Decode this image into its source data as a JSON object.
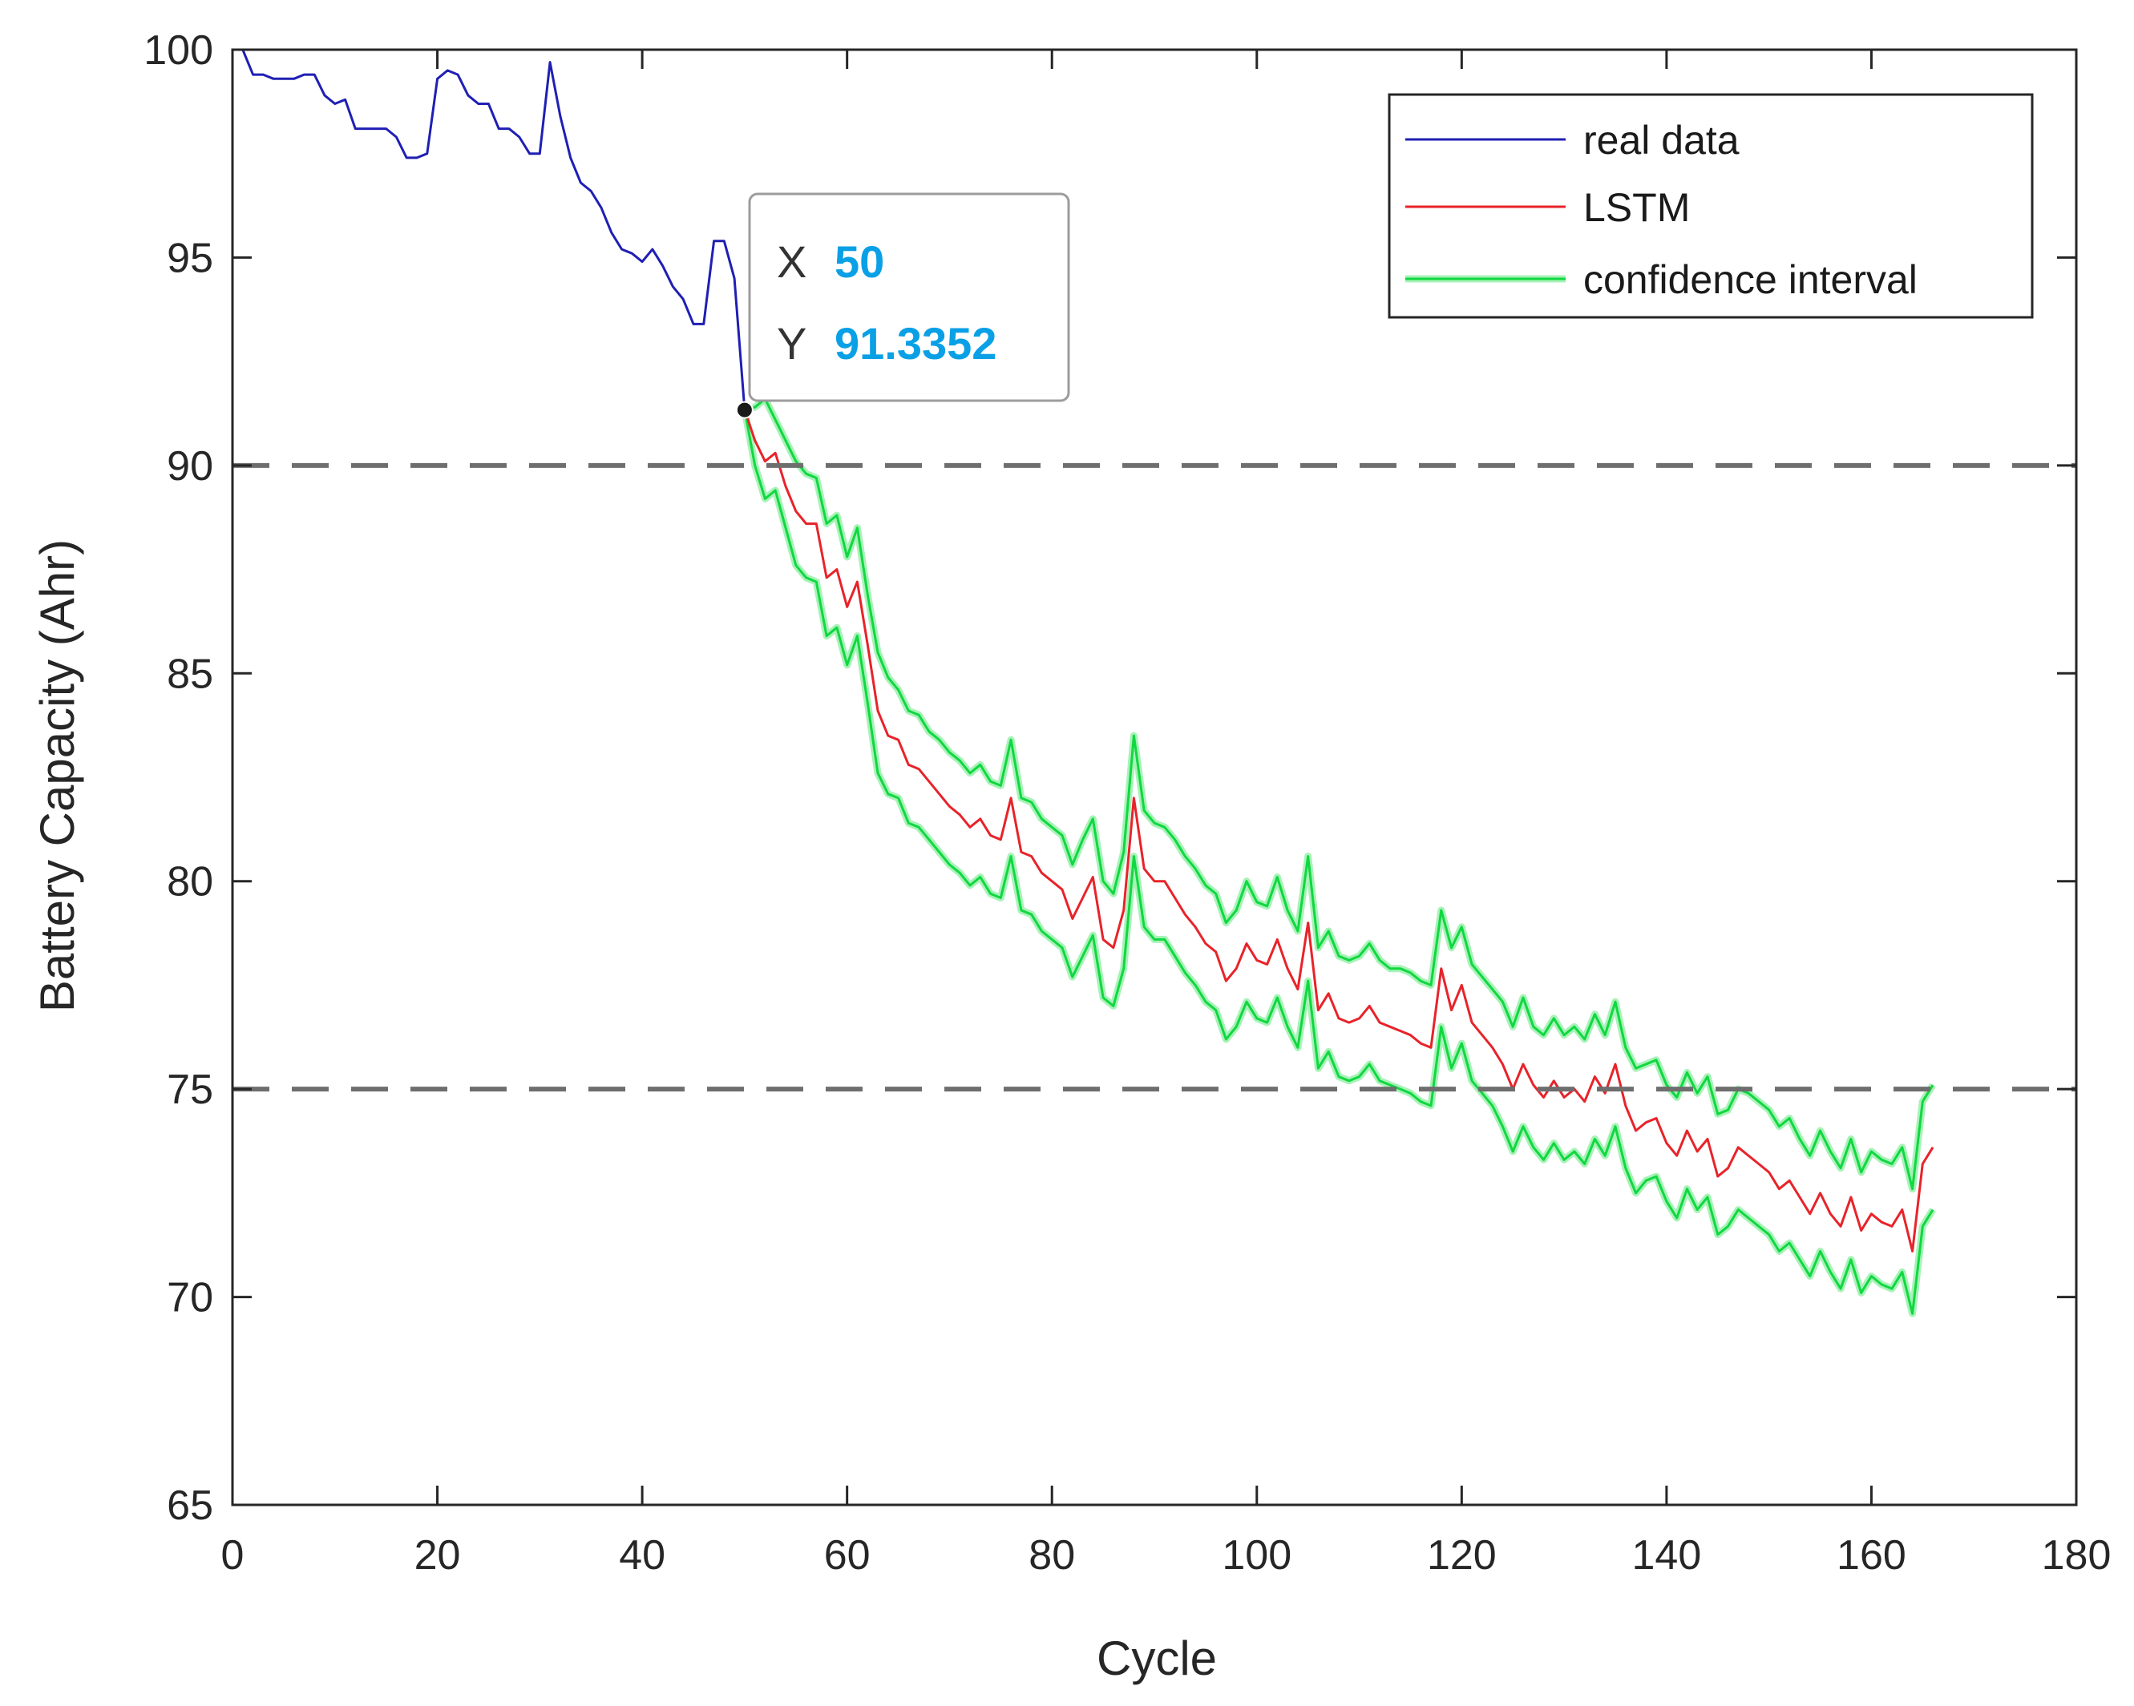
{
  "chart_data": {
    "type": "line",
    "title": "",
    "xlabel": "Cycle",
    "ylabel": "Battery Capacity (Ahr)",
    "xlim": [
      0,
      180
    ],
    "ylim": [
      65,
      100
    ],
    "xticks": [
      0,
      20,
      40,
      60,
      80,
      100,
      120,
      140,
      160,
      180
    ],
    "yticks": [
      65,
      70,
      75,
      80,
      85,
      90,
      95,
      100
    ],
    "xtick_labels": [
      "0",
      "20",
      "40",
      "60",
      "80",
      "100",
      "120",
      "140",
      "160",
      "180"
    ],
    "ytick_labels": [
      "65",
      "70",
      "75",
      "80",
      "85",
      "90",
      "95",
      "100"
    ],
    "threshold_lines": [
      90,
      75
    ],
    "legend_position": "top-right",
    "colors": {
      "real": "#1f1fb4",
      "lstm": "#e8232a",
      "ci": "#10d840",
      "ci_glow": "#a8f2b8",
      "threshold": "#6e6e6e",
      "axis": "#262626"
    },
    "series": [
      {
        "name": "real data",
        "color": "#1f1fb4",
        "x": [
          1,
          2,
          3,
          4,
          5,
          6,
          7,
          8,
          9,
          10,
          11,
          12,
          13,
          14,
          15,
          16,
          17,
          18,
          19,
          20,
          21,
          22,
          23,
          24,
          25,
          26,
          27,
          28,
          29,
          30,
          31,
          32,
          33,
          34,
          35,
          36,
          37,
          38,
          39,
          40,
          41,
          42,
          43,
          44,
          45,
          46,
          47,
          48,
          49,
          50
        ],
        "y": [
          100,
          99.4,
          99.4,
          99.3,
          99.3,
          99.3,
          99.4,
          99.4,
          98.9,
          98.7,
          98.8,
          98.1,
          98.1,
          98.1,
          98.1,
          97.9,
          97.4,
          97.4,
          97.5,
          99.3,
          99.5,
          99.4,
          98.9,
          98.7,
          98.7,
          98.1,
          98.1,
          97.9,
          97.5,
          97.5,
          99.7,
          98.4,
          97.4,
          96.8,
          96.6,
          96.2,
          95.6,
          95.2,
          95.1,
          94.9,
          95.2,
          94.8,
          94.3,
          94.0,
          93.4,
          93.4,
          95.4,
          95.4,
          94.5,
          91.3352
        ]
      },
      {
        "name": "LSTM",
        "color": "#e8232a",
        "x": [
          50,
          51,
          52,
          53,
          54,
          55,
          56,
          57,
          58,
          59,
          60,
          61,
          62,
          63,
          64,
          65,
          66,
          67,
          68,
          69,
          70,
          71,
          72,
          73,
          74,
          75,
          76,
          77,
          78,
          79,
          80,
          81,
          82,
          83,
          84,
          85,
          86,
          87,
          88,
          89,
          90,
          91,
          92,
          93,
          94,
          95,
          96,
          97,
          98,
          99,
          100,
          101,
          102,
          103,
          104,
          105,
          106,
          107,
          108,
          109,
          110,
          111,
          112,
          113,
          114,
          115,
          116,
          117,
          118,
          119,
          120,
          121,
          122,
          123,
          124,
          125,
          126,
          127,
          128,
          129,
          130,
          131,
          132,
          133,
          134,
          135,
          136,
          137,
          138,
          139,
          140,
          141,
          142,
          143,
          144,
          145,
          146,
          147,
          148,
          149,
          150,
          151,
          152,
          153,
          154,
          155,
          156,
          157,
          158,
          159,
          160,
          161,
          162,
          163,
          164,
          165,
          166
        ],
        "y": [
          91.34,
          90.6,
          90.1,
          90.3,
          89.5,
          88.9,
          88.6,
          88.6,
          87.3,
          87.5,
          86.6,
          87.2,
          85.7,
          84.1,
          83.5,
          83.4,
          82.8,
          82.7,
          82.4,
          82.1,
          81.8,
          81.6,
          81.3,
          81.5,
          81.1,
          81.0,
          82.0,
          80.7,
          80.6,
          80.2,
          80.0,
          79.8,
          79.1,
          79.6,
          80.1,
          78.6,
          78.4,
          79.3,
          82.0,
          80.3,
          80.0,
          80.0,
          79.6,
          79.2,
          78.9,
          78.5,
          78.3,
          77.6,
          77.9,
          78.5,
          78.1,
          78.0,
          78.6,
          77.9,
          77.4,
          79.0,
          76.9,
          77.3,
          76.7,
          76.6,
          76.7,
          77.0,
          76.6,
          76.5,
          76.4,
          76.3,
          76.1,
          76.0,
          77.9,
          76.9,
          77.5,
          76.6,
          76.3,
          76.0,
          75.6,
          75.0,
          75.6,
          75.1,
          74.8,
          75.2,
          74.8,
          75.0,
          74.7,
          75.3,
          74.9,
          75.6,
          74.6,
          74.0,
          74.2,
          74.3,
          73.7,
          73.4,
          74.0,
          73.5,
          73.8,
          72.9,
          73.1,
          73.6,
          73.4,
          73.2,
          73.0,
          72.6,
          72.8,
          72.4,
          72.0,
          72.5,
          72.0,
          71.7,
          72.4,
          71.6,
          72.0,
          71.8,
          71.7,
          72.1,
          71.1,
          73.2,
          73.6
        ]
      },
      {
        "name": "confidence interval",
        "color": "#10d840",
        "x": [
          50,
          51,
          52,
          53,
          54,
          55,
          56,
          57,
          58,
          59,
          60,
          61,
          62,
          63,
          64,
          65,
          66,
          67,
          68,
          69,
          70,
          71,
          72,
          73,
          74,
          75,
          76,
          77,
          78,
          79,
          80,
          81,
          82,
          83,
          84,
          85,
          86,
          87,
          88,
          89,
          90,
          91,
          92,
          93,
          94,
          95,
          96,
          97,
          98,
          99,
          100,
          101,
          102,
          103,
          104,
          105,
          106,
          107,
          108,
          109,
          110,
          111,
          112,
          113,
          114,
          115,
          116,
          117,
          118,
          119,
          120,
          121,
          122,
          123,
          124,
          125,
          126,
          127,
          128,
          129,
          130,
          131,
          132,
          133,
          134,
          135,
          136,
          137,
          138,
          139,
          140,
          141,
          142,
          143,
          144,
          145,
          146,
          147,
          148,
          149,
          150,
          151,
          152,
          153,
          154,
          155,
          156,
          157,
          158,
          159,
          160,
          161,
          162,
          163,
          164,
          165,
          166
        ],
        "upper": [
          91.34,
          91.4,
          91.6,
          91.1,
          90.6,
          90.1,
          89.8,
          89.7,
          88.6,
          88.8,
          87.8,
          88.5,
          86.9,
          85.5,
          84.9,
          84.6,
          84.1,
          84.0,
          83.6,
          83.4,
          83.1,
          82.9,
          82.6,
          82.8,
          82.4,
          82.3,
          83.4,
          82.0,
          81.9,
          81.5,
          81.3,
          81.1,
          80.4,
          81.0,
          81.5,
          80.0,
          79.7,
          80.7,
          83.5,
          81.7,
          81.4,
          81.3,
          81.0,
          80.6,
          80.3,
          79.9,
          79.7,
          79.0,
          79.3,
          80.0,
          79.5,
          79.4,
          80.1,
          79.3,
          78.8,
          80.6,
          78.4,
          78.8,
          78.2,
          78.1,
          78.2,
          78.5,
          78.1,
          77.9,
          77.9,
          77.8,
          77.6,
          77.5,
          79.3,
          78.4,
          78.9,
          78.0,
          77.7,
          77.4,
          77.1,
          76.5,
          77.2,
          76.5,
          76.3,
          76.7,
          76.3,
          76.5,
          76.2,
          76.8,
          76.3,
          77.1,
          76.0,
          75.5,
          75.6,
          75.7,
          75.1,
          74.8,
          75.4,
          74.9,
          75.3,
          74.4,
          74.5,
          75.0,
          74.9,
          74.7,
          74.5,
          74.1,
          74.3,
          73.8,
          73.4,
          74.0,
          73.5,
          73.1,
          73.8,
          73.0,
          73.5,
          73.3,
          73.2,
          73.6,
          72.6,
          74.7,
          75.1
        ],
        "lower": [
          91.34,
          90.0,
          89.2,
          89.4,
          88.5,
          87.6,
          87.3,
          87.2,
          85.9,
          86.1,
          85.2,
          85.9,
          84.3,
          82.6,
          82.1,
          82.0,
          81.4,
          81.3,
          81.0,
          80.7,
          80.4,
          80.2,
          79.9,
          80.1,
          79.7,
          79.6,
          80.6,
          79.3,
          79.2,
          78.8,
          78.6,
          78.4,
          77.7,
          78.2,
          78.7,
          77.2,
          77.0,
          77.9,
          80.6,
          78.9,
          78.6,
          78.6,
          78.2,
          77.8,
          77.5,
          77.1,
          76.9,
          76.2,
          76.5,
          77.1,
          76.7,
          76.6,
          77.2,
          76.5,
          76.0,
          77.6,
          75.5,
          75.9,
          75.3,
          75.2,
          75.3,
          75.6,
          75.2,
          75.1,
          75.0,
          74.9,
          74.7,
          74.6,
          76.5,
          75.5,
          76.1,
          75.2,
          74.9,
          74.6,
          74.1,
          73.5,
          74.1,
          73.6,
          73.3,
          73.7,
          73.3,
          73.5,
          73.2,
          73.8,
          73.4,
          74.1,
          73.1,
          72.5,
          72.8,
          72.9,
          72.3,
          71.9,
          72.6,
          72.1,
          72.4,
          71.5,
          71.7,
          72.1,
          71.9,
          71.7,
          71.5,
          71.1,
          71.3,
          70.9,
          70.5,
          71.1,
          70.6,
          70.2,
          70.9,
          70.1,
          70.5,
          70.3,
          70.2,
          70.6,
          69.6,
          71.7,
          72.1
        ]
      }
    ],
    "datatip": {
      "x_key": "X",
      "x_value": "50",
      "y_key": "Y",
      "y_value": "91.3352",
      "point_x": 50,
      "point_y": 91.3352
    },
    "legend": [
      "real data",
      "LSTM",
      "confidence interval"
    ]
  }
}
